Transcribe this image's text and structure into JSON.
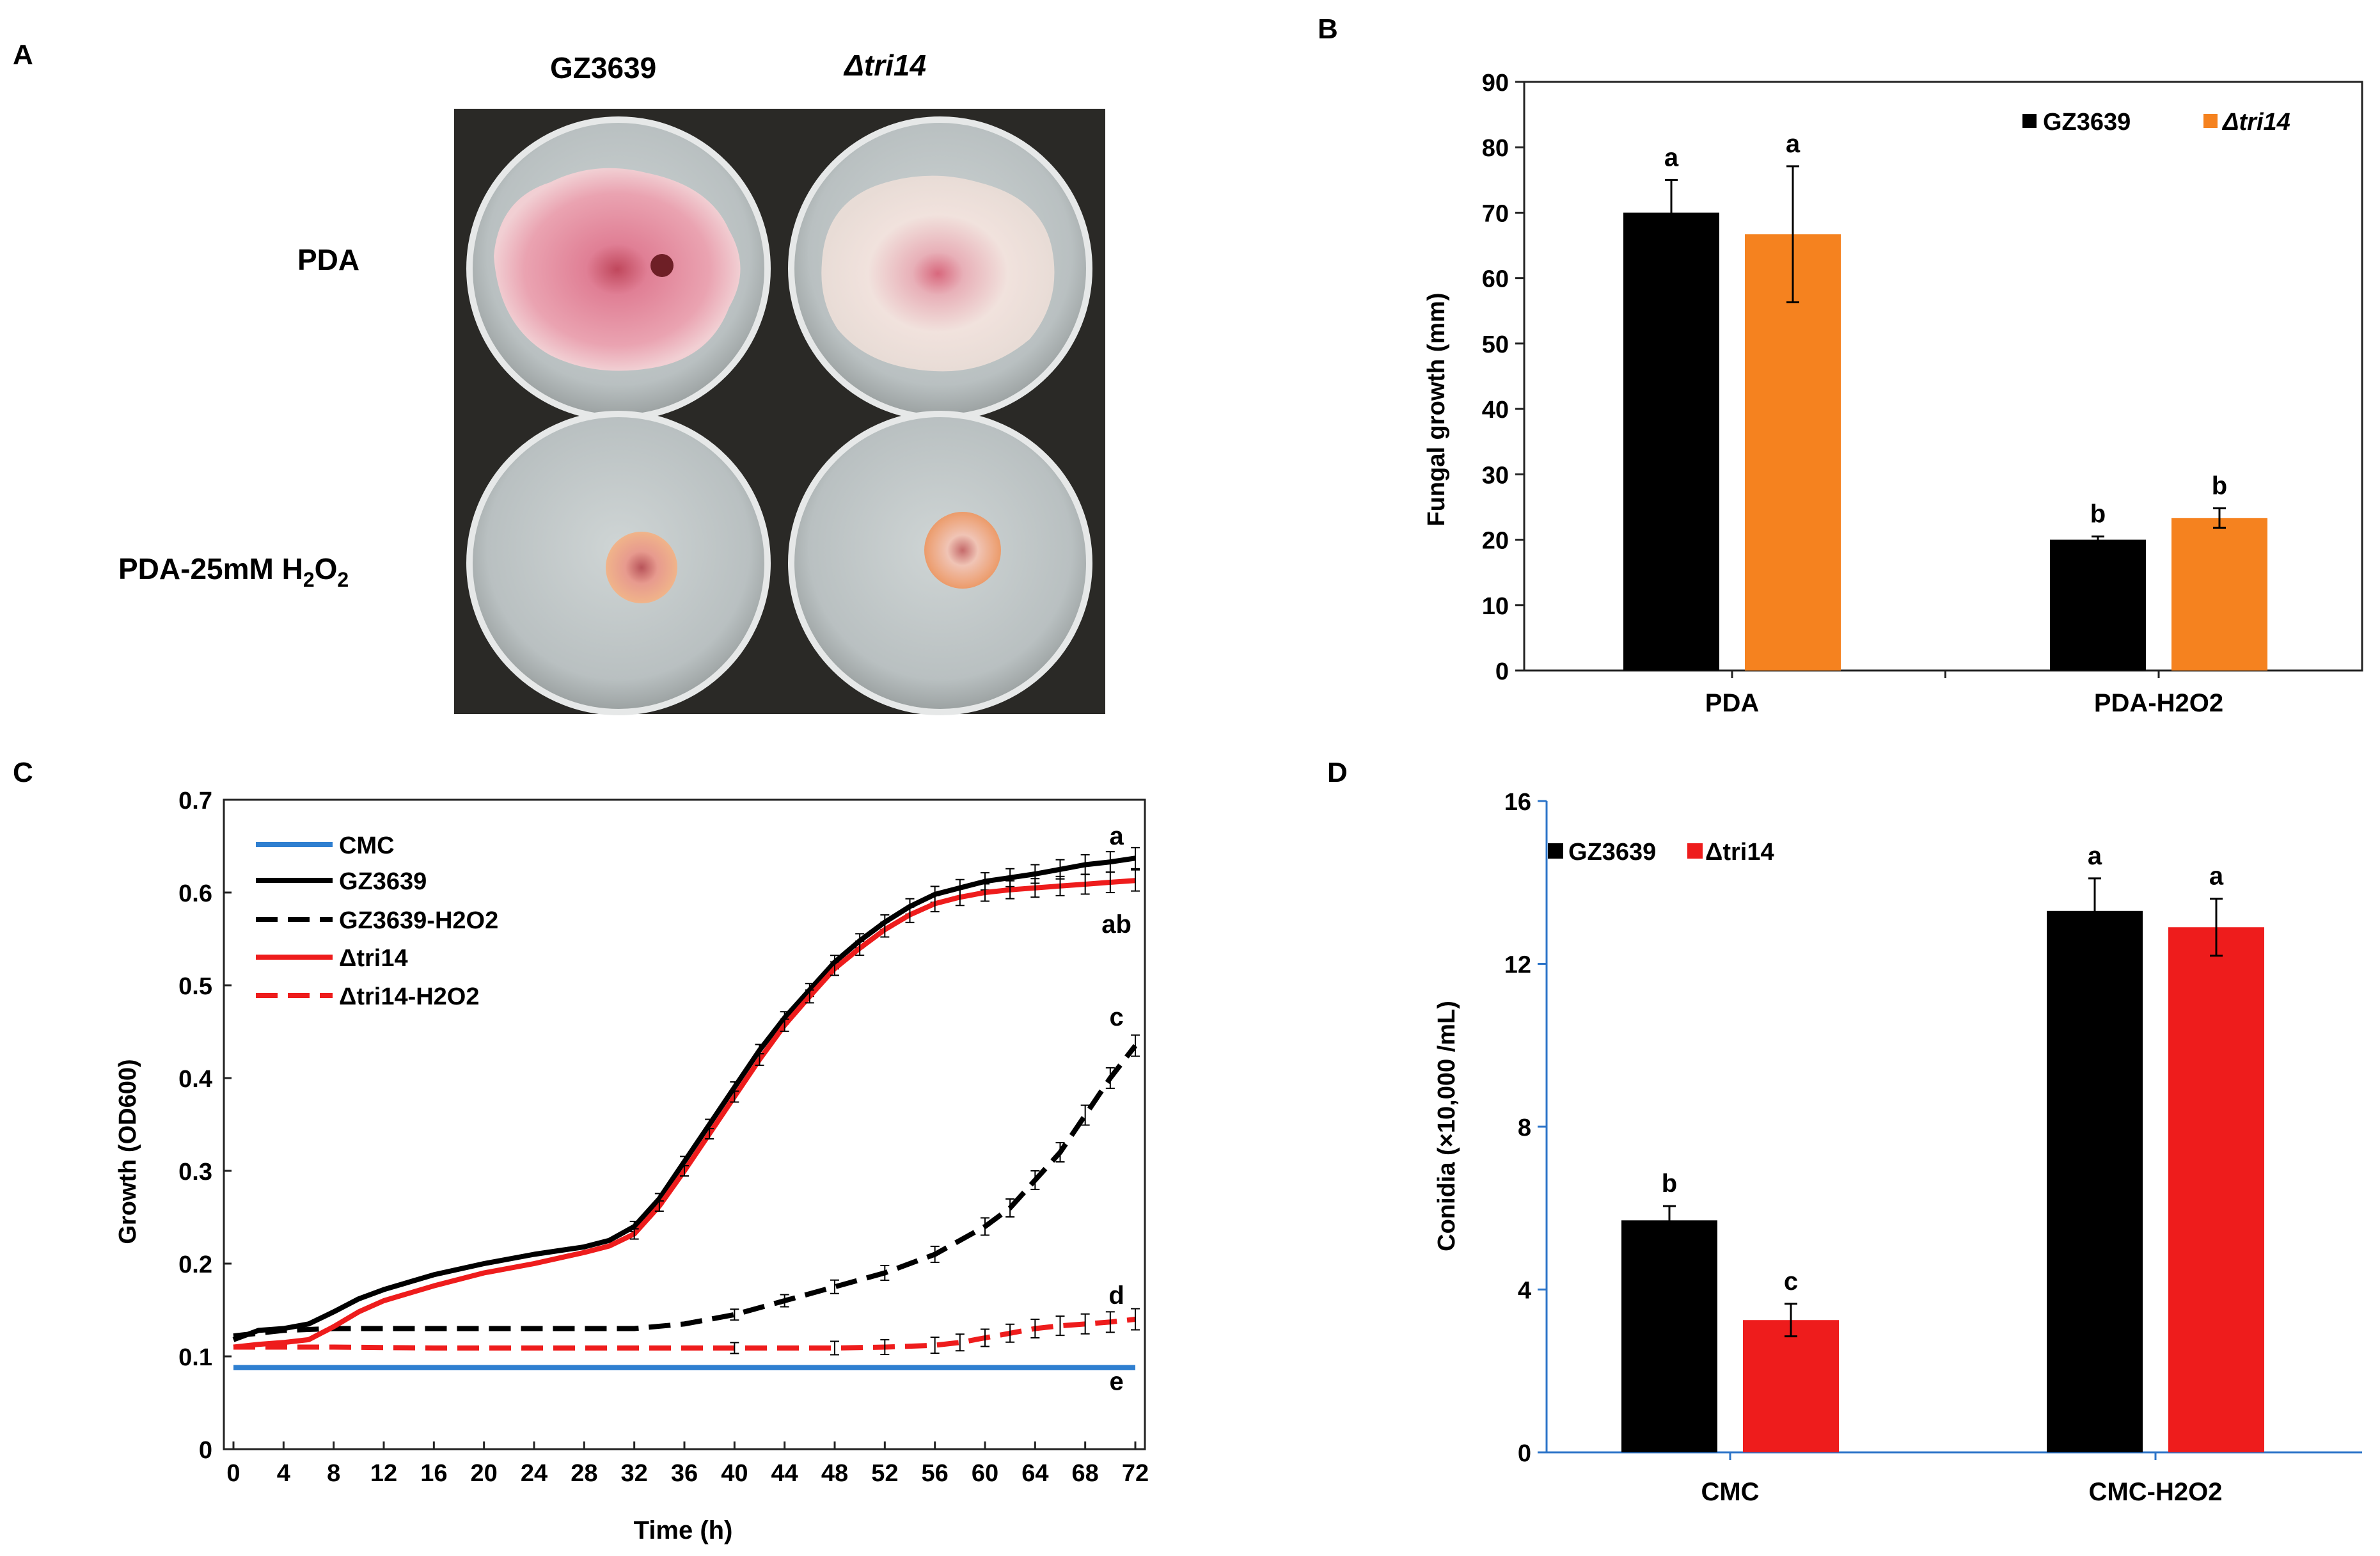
{
  "panel_letters": {
    "a": "A",
    "b": "B",
    "c": "C",
    "d": "D"
  },
  "panel_a": {
    "col_labels": {
      "delta": "Δ",
      "strain1": "GZ3639",
      "strain2": "tri14"
    },
    "row_labels": {
      "pda": "PDA",
      "pda_h2o2_prefix": "PDA-25mM H",
      "sub2": "2",
      "mid_o": "O",
      "sub2b": "2"
    }
  },
  "colors": {
    "black": "#000000",
    "orange": "#f5821f",
    "red": "#ee1c1c",
    "blue": "#2f7fd0",
    "axis_blue": "#2c74c8",
    "plate_bg": "#2a2926",
    "agar": "#bfc6c6",
    "colony_pink": "#e38fa0",
    "colony_white": "#efe2dc"
  },
  "chart_data": [
    {
      "id": "B",
      "type": "bar",
      "categories": [
        "PDA",
        "PDA-H2O2"
      ],
      "series": [
        {
          "name": "GZ3639",
          "color": "#000000",
          "values": [
            70,
            20
          ],
          "errors": [
            5,
            0.5
          ]
        },
        {
          "name": "tri14",
          "prefix": "Δ",
          "italic": true,
          "color": "#f5821f",
          "values": [
            66.7,
            23.3
          ],
          "errors": [
            10.4,
            1.5
          ]
        }
      ],
      "letters": [
        [
          "a",
          "b"
        ],
        [
          "a",
          "b"
        ]
      ],
      "ylabel": "Fungal growth (mm)",
      "ylim": [
        0,
        90
      ],
      "yticks": [
        0,
        10,
        20,
        30,
        40,
        50,
        60,
        70,
        80,
        90
      ],
      "xlabel": ""
    },
    {
      "id": "C",
      "type": "line",
      "xlabel": "Time (h)",
      "ylabel": "Growth (OD600)",
      "xlim": [
        0,
        72
      ],
      "ylim": [
        0,
        0.7
      ],
      "xticks": [
        0,
        4,
        8,
        12,
        16,
        20,
        24,
        28,
        32,
        36,
        40,
        44,
        48,
        52,
        56,
        60,
        64,
        68,
        72
      ],
      "yticks": [
        "0",
        "0.1",
        "0.2",
        "0.3",
        "0.4",
        "0.5",
        "0.6",
        "0.7"
      ],
      "series": [
        {
          "name": "CMC",
          "color": "#2f7fd0",
          "dash": false,
          "errorbars": false,
          "x": [
            0,
            72
          ],
          "y": [
            0.088,
            0.088
          ]
        },
        {
          "name": "GZ3639",
          "color": "#000000",
          "dash": false,
          "errorbars": true,
          "x": [
            0,
            2,
            4,
            6,
            8,
            10,
            12,
            16,
            20,
            24,
            28,
            30,
            32,
            34,
            36,
            38,
            40,
            42,
            44,
            46,
            48,
            50,
            52,
            54,
            56,
            58,
            60,
            62,
            64,
            66,
            68,
            70,
            72
          ],
          "y": [
            0.118,
            0.128,
            0.13,
            0.135,
            0.148,
            0.162,
            0.172,
            0.188,
            0.2,
            0.21,
            0.218,
            0.225,
            0.24,
            0.27,
            0.31,
            0.35,
            0.39,
            0.43,
            0.465,
            0.495,
            0.525,
            0.548,
            0.568,
            0.585,
            0.598,
            0.605,
            0.612,
            0.616,
            0.62,
            0.625,
            0.63,
            0.633,
            0.637
          ]
        },
        {
          "name": "GZ3639-H2O2",
          "color": "#000000",
          "dash": true,
          "errorbars": true,
          "x": [
            0,
            4,
            8,
            16,
            24,
            32,
            36,
            40,
            44,
            48,
            52,
            56,
            60,
            62,
            64,
            66,
            68,
            70,
            72
          ],
          "y": [
            0.122,
            0.128,
            0.13,
            0.13,
            0.13,
            0.13,
            0.135,
            0.145,
            0.16,
            0.175,
            0.19,
            0.21,
            0.24,
            0.26,
            0.29,
            0.32,
            0.36,
            0.4,
            0.435
          ]
        },
        {
          "name": "tri14",
          "prefix": "Δ",
          "color": "#ee1c1c",
          "dash": false,
          "errorbars": true,
          "x": [
            0,
            2,
            4,
            6,
            8,
            10,
            12,
            16,
            20,
            24,
            28,
            30,
            32,
            34,
            36,
            38,
            40,
            42,
            44,
            46,
            48,
            50,
            52,
            54,
            56,
            58,
            60,
            62,
            64,
            66,
            68,
            70,
            72
          ],
          "y": [
            0.11,
            0.113,
            0.115,
            0.118,
            0.132,
            0.148,
            0.16,
            0.176,
            0.19,
            0.2,
            0.212,
            0.219,
            0.232,
            0.262,
            0.3,
            0.34,
            0.38,
            0.42,
            0.457,
            0.488,
            0.518,
            0.54,
            0.56,
            0.576,
            0.588,
            0.595,
            0.6,
            0.603,
            0.605,
            0.607,
            0.609,
            0.611,
            0.613
          ]
        },
        {
          "name": "tri14-H2O2",
          "prefix": "Δ",
          "color": "#ee1c1c",
          "dash": true,
          "errorbars": true,
          "x": [
            0,
            4,
            8,
            16,
            24,
            32,
            40,
            48,
            52,
            56,
            58,
            60,
            62,
            64,
            66,
            68,
            70,
            72
          ],
          "y": [
            0.11,
            0.11,
            0.11,
            0.109,
            0.109,
            0.109,
            0.109,
            0.109,
            0.11,
            0.112,
            0.115,
            0.12,
            0.125,
            0.13,
            0.133,
            0.135,
            0.137,
            0.14
          ]
        }
      ],
      "end_letters": [
        {
          "text": "a",
          "y": 0.66
        },
        {
          "text": "ab",
          "y": 0.565
        },
        {
          "text": "c",
          "y": 0.465
        },
        {
          "text": "d",
          "y": 0.165
        },
        {
          "text": "e",
          "y": 0.072
        }
      ]
    },
    {
      "id": "D",
      "type": "bar",
      "categories": [
        "CMC",
        "CMC-H2O2"
      ],
      "series": [
        {
          "name": "GZ3639",
          "color": "#000000",
          "values": [
            5.7,
            13.3
          ],
          "errors": [
            0.35,
            0.8
          ]
        },
        {
          "name": "tri14",
          "prefix": "Δ",
          "italic": false,
          "color": "#ee1c1c",
          "values": [
            3.25,
            12.9
          ],
          "errors": [
            0.4,
            0.7
          ]
        }
      ],
      "letters": [
        [
          "b",
          "a"
        ],
        [
          "c",
          "a"
        ]
      ],
      "ylabel": "Conidia (×10,000 /mL)",
      "ylim": [
        0,
        16
      ],
      "yticks": [
        0,
        4,
        8,
        12,
        16
      ],
      "xlabel": ""
    }
  ]
}
